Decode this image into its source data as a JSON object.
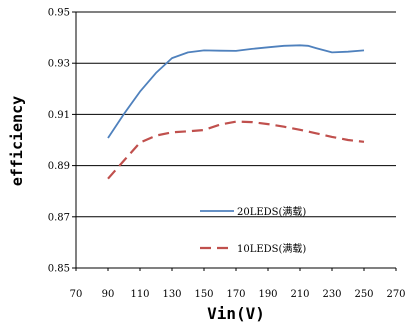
{
  "chart_data": {
    "type": "line",
    "title": "",
    "xlabel": "Vin(V)",
    "ylabel": "efficiency",
    "xlim": [
      70,
      270
    ],
    "ylim": [
      0.85,
      0.95
    ],
    "xticks": [
      "70",
      "90",
      "110",
      "130",
      "150",
      "170",
      "190",
      "210",
      "230",
      "250",
      "270"
    ],
    "yticks": [
      "0.95",
      "0.93",
      "0.91",
      "0.89",
      "0.87",
      "0.85"
    ],
    "grid": "horizontal",
    "legend_position": "lower-center",
    "series": [
      {
        "name": "20LEDS(满载)",
        "color": "#4f81bd",
        "style": "solid",
        "x": [
          90,
          100,
          110,
          120,
          130,
          140,
          150,
          160,
          170,
          180,
          190,
          200,
          210,
          215,
          220,
          230,
          240,
          250
        ],
        "y": [
          0.9008,
          0.9102,
          0.9189,
          0.9262,
          0.932,
          0.9342,
          0.935,
          0.9349,
          0.9348,
          0.9356,
          0.9362,
          0.9368,
          0.937,
          0.9368,
          0.9359,
          0.9342,
          0.9345,
          0.935
        ]
      },
      {
        "name": "10LEDS(满载)",
        "color": "#c0504d",
        "style": "dashed",
        "x": [
          90,
          100,
          110,
          120,
          130,
          140,
          150,
          160,
          170,
          180,
          190,
          200,
          210,
          220,
          230,
          240,
          250
        ],
        "y": [
          0.8849,
          0.892,
          0.899,
          0.9017,
          0.903,
          0.9034,
          0.9039,
          0.906,
          0.9072,
          0.907,
          0.9062,
          0.9052,
          0.904,
          0.9026,
          0.9012,
          0.9,
          0.8993
        ]
      }
    ]
  }
}
